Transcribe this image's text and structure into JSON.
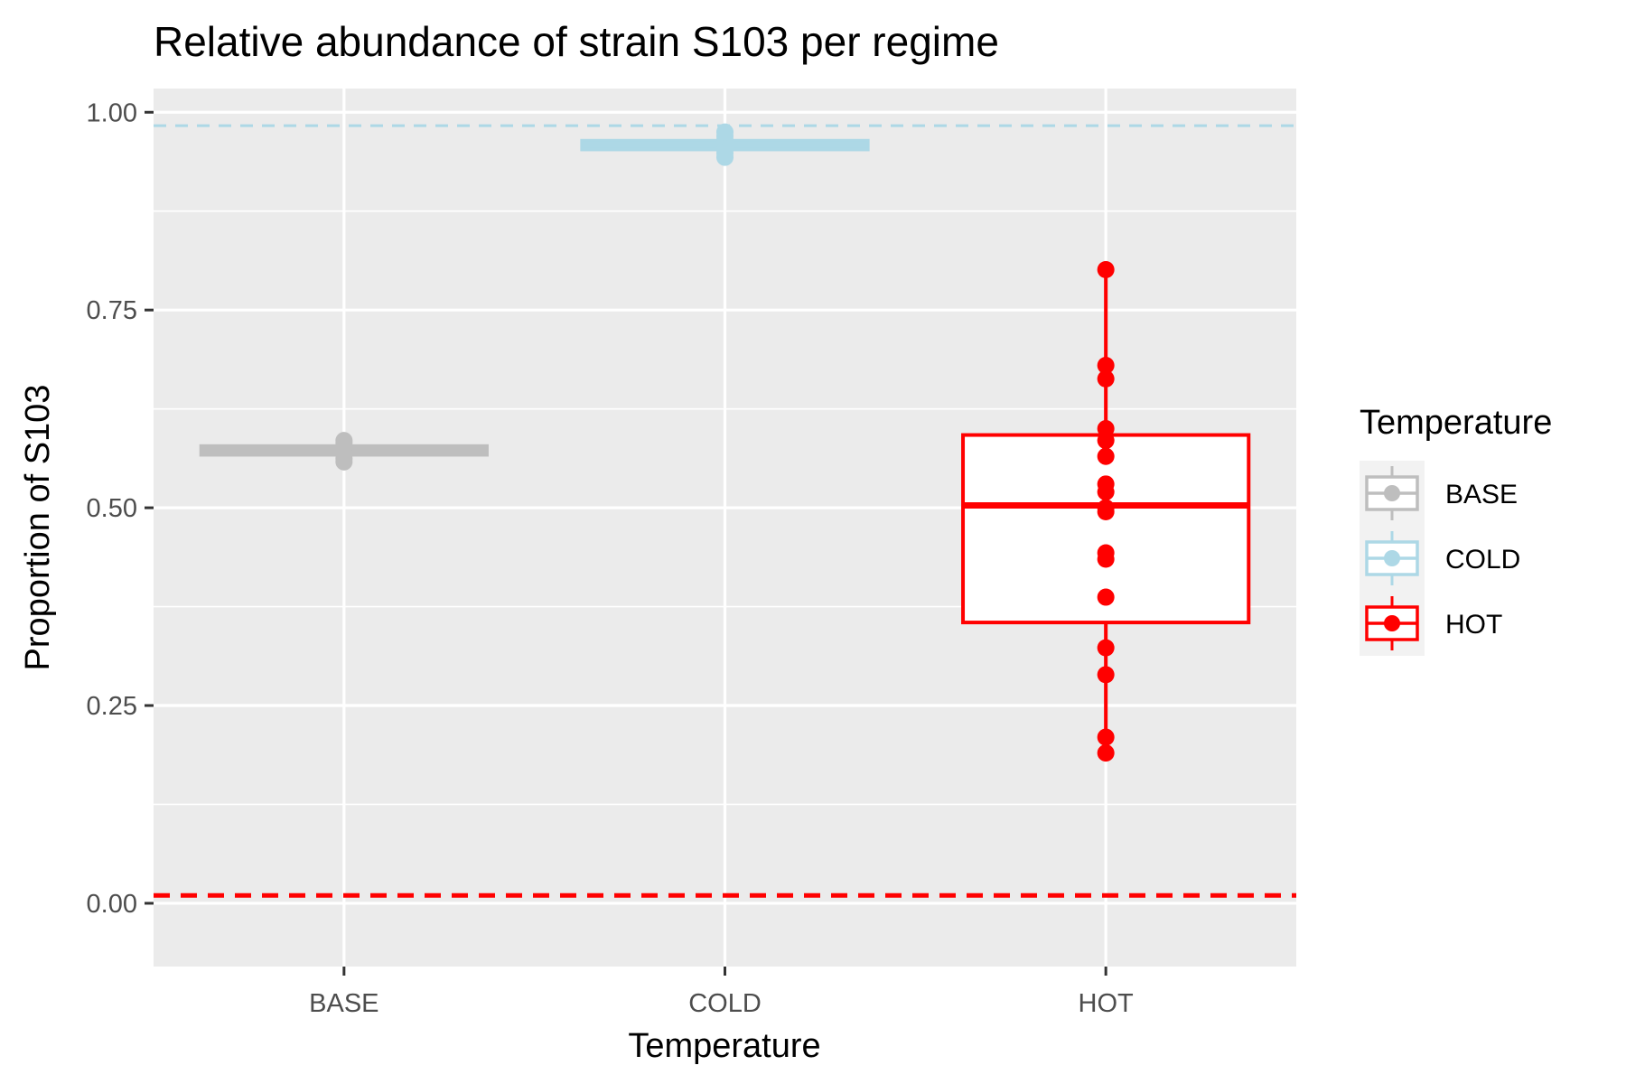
{
  "chart_data": {
    "type": "box",
    "title": "Relative abundance of strain S103 per regime",
    "xlabel": "Temperature",
    "ylabel": "Proportion of S103",
    "categories": [
      "BASE",
      "COLD",
      "HOT"
    ],
    "ylim": [
      -0.08,
      1.03
    ],
    "yticks": [
      "0.00",
      "0.25",
      "0.50",
      "0.75",
      "1.00"
    ],
    "grid": true,
    "legend": {
      "title": "Temperature",
      "placement": "right",
      "entries": [
        "BASE",
        "COLD",
        "HOT"
      ]
    },
    "colors": {
      "BASE": "#bebebe",
      "COLD": "#add8e6",
      "HOT": "#ff0000",
      "panel": "#ebebeb",
      "grid": "#ffffff"
    },
    "series": [
      {
        "name": "BASE",
        "box": {
          "min": 0.558,
          "q1": 0.567,
          "median": 0.573,
          "q3": 0.578,
          "max": 0.585
        },
        "points": [
          0.558,
          0.562,
          0.567,
          0.571,
          0.575,
          0.578,
          0.582,
          0.585
        ]
      },
      {
        "name": "COLD",
        "box": {
          "min": 0.943,
          "q1": 0.953,
          "median": 0.959,
          "q3": 0.964,
          "max": 0.975
        },
        "points": [
          0.943,
          0.948,
          0.953,
          0.957,
          0.961,
          0.965,
          0.97,
          0.975
        ]
      },
      {
        "name": "HOT",
        "box": {
          "min": 0.19,
          "q1": 0.355,
          "median": 0.503,
          "q3": 0.592,
          "max": 0.801
        },
        "points": [
          0.801,
          0.68,
          0.663,
          0.6,
          0.585,
          0.565,
          0.53,
          0.52,
          0.5,
          0.495,
          0.443,
          0.435,
          0.387,
          0.323,
          0.289,
          0.21,
          0.19
        ]
      }
    ],
    "reference_lines": [
      {
        "y": 0.983,
        "color": "#add8e6",
        "style": "dashed"
      },
      {
        "y": 0.01,
        "color": "#ff0000",
        "style": "dashed"
      }
    ]
  }
}
